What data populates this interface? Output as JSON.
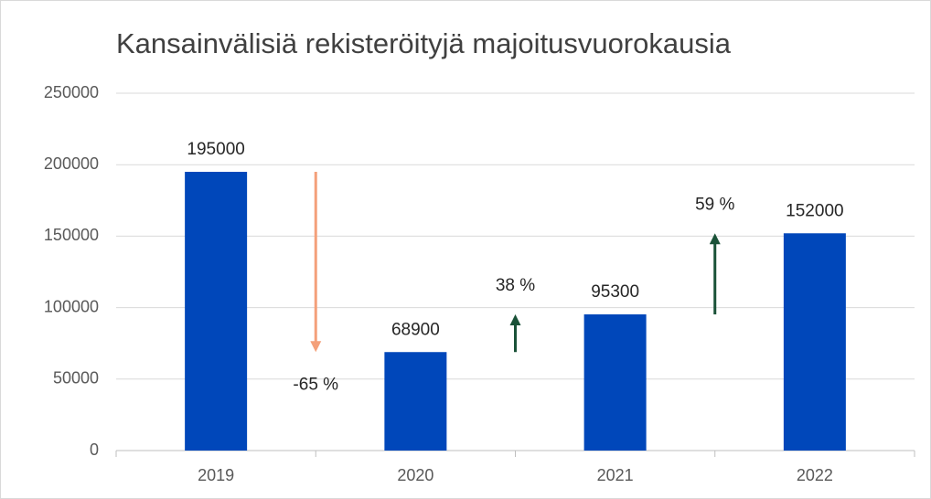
{
  "chart_data": {
    "type": "bar",
    "title": "Kansainvälisiä rekisteröityjä majoitusvuorokausia",
    "categories": [
      "2019",
      "2020",
      "2021",
      "2022"
    ],
    "values": [
      195000,
      68900,
      95300,
      152000
    ],
    "color": "#0047ba",
    "ylim": [
      0,
      250000
    ],
    "yticks": [
      0,
      50000,
      100000,
      150000,
      200000,
      250000
    ],
    "grid": true,
    "annotations": [
      {
        "text": "-65 %",
        "color": "#f4a07a"
      },
      {
        "text": "38 %",
        "color": "#1a5238"
      },
      {
        "text": "59 %",
        "color": "#1a5238"
      }
    ]
  }
}
